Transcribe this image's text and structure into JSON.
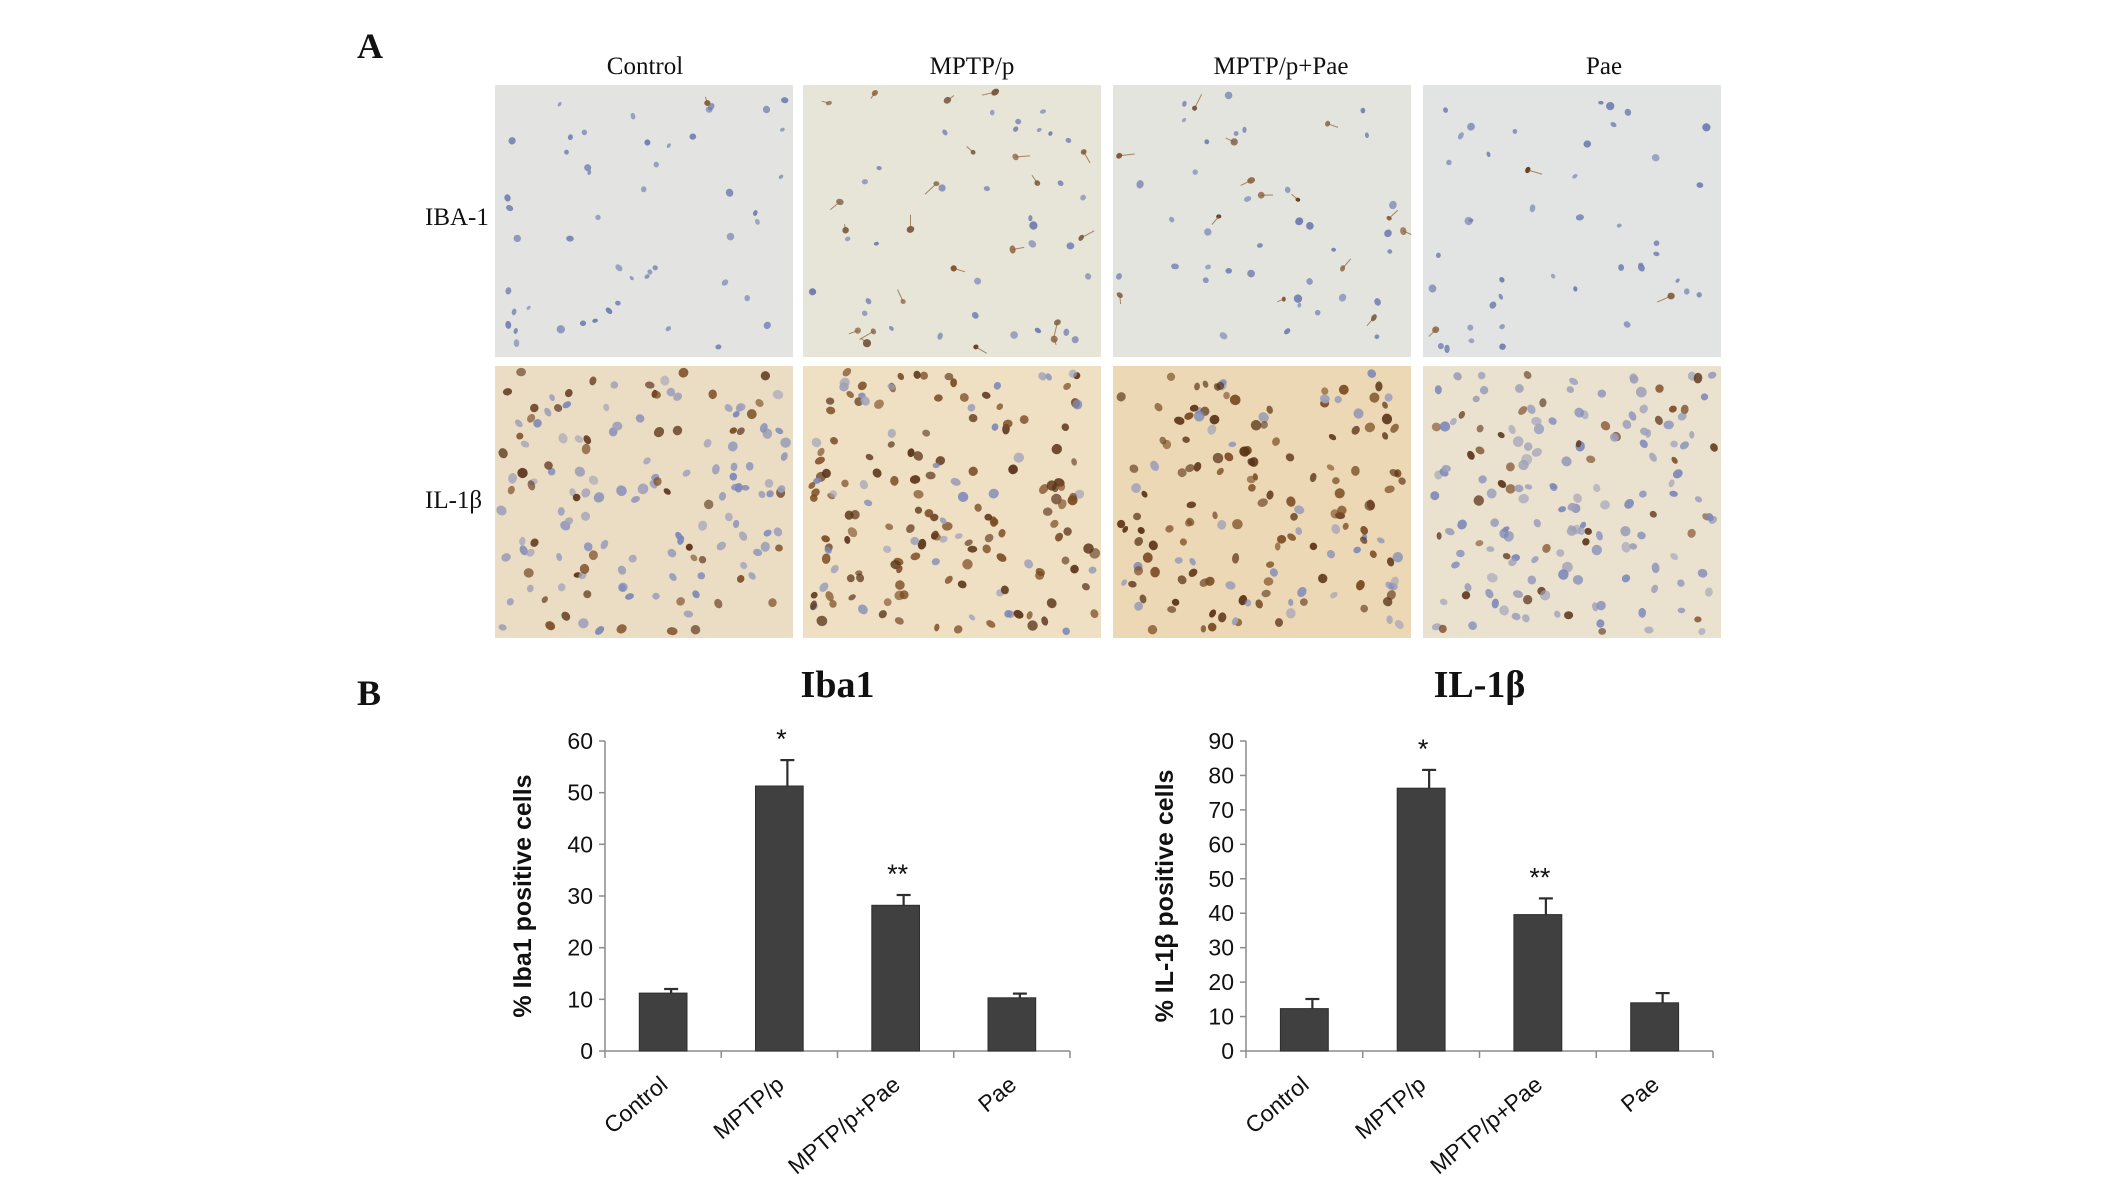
{
  "panel_a": {
    "label": "A",
    "columns": [
      "Control",
      "MPTP/p",
      "MPTP/p+Pae",
      "Pae"
    ],
    "rows": [
      "IBA-1",
      "IL-1β"
    ],
    "tiles": [
      [
        {
          "bg": "#e3e4e2",
          "density": 50,
          "stain": 0.08
        },
        {
          "bg": "#e7e4d8",
          "density": 55,
          "stain": 0.45
        },
        {
          "bg": "#e4e4df",
          "density": 50,
          "stain": 0.3
        },
        {
          "bg": "#e2e4e3",
          "density": 45,
          "stain": 0.06
        }
      ],
      [
        {
          "bg": "#ebdcc4",
          "density": 150,
          "stain": 0.35
        },
        {
          "bg": "#efdfc3",
          "density": 170,
          "stain": 0.8
        },
        {
          "bg": "#ecd8b4",
          "density": 160,
          "stain": 0.7
        },
        {
          "bg": "#ebe1cf",
          "density": 165,
          "stain": 0.2
        }
      ]
    ]
  },
  "panel_b": {
    "label": "B",
    "bar_color": "#404040"
  },
  "chart_data": [
    {
      "type": "bar",
      "title": "Iba1",
      "xlabel": "",
      "ylabel": "% Iba1  positive cells",
      "categories": [
        "Control",
        "MPTP/p",
        "MPTP/p+Pae",
        "Pae"
      ],
      "values": [
        11.2,
        51.3,
        28.2,
        10.3
      ],
      "errors": [
        0.8,
        5.0,
        2.0,
        0.8
      ],
      "annotations": [
        "",
        "*",
        "**",
        ""
      ],
      "ylim": [
        0,
        60
      ],
      "yticks": [
        0,
        10,
        20,
        30,
        40,
        50,
        60
      ],
      "grid": false,
      "legend": "none"
    },
    {
      "type": "bar",
      "title": "IL-1β",
      "xlabel": "",
      "ylabel": "% IL-1β  positive cells",
      "categories": [
        "Control",
        "MPTP/p",
        "MPTP/p+Pae",
        "Pae"
      ],
      "values": [
        12.3,
        76.3,
        39.6,
        14.0
      ],
      "errors": [
        2.8,
        5.3,
        4.7,
        2.8
      ],
      "annotations": [
        "",
        "*",
        "**",
        ""
      ],
      "ylim": [
        0,
        90
      ],
      "yticks": [
        0,
        10,
        20,
        30,
        40,
        50,
        60,
        70,
        80,
        90
      ],
      "grid": false,
      "legend": "none"
    }
  ]
}
